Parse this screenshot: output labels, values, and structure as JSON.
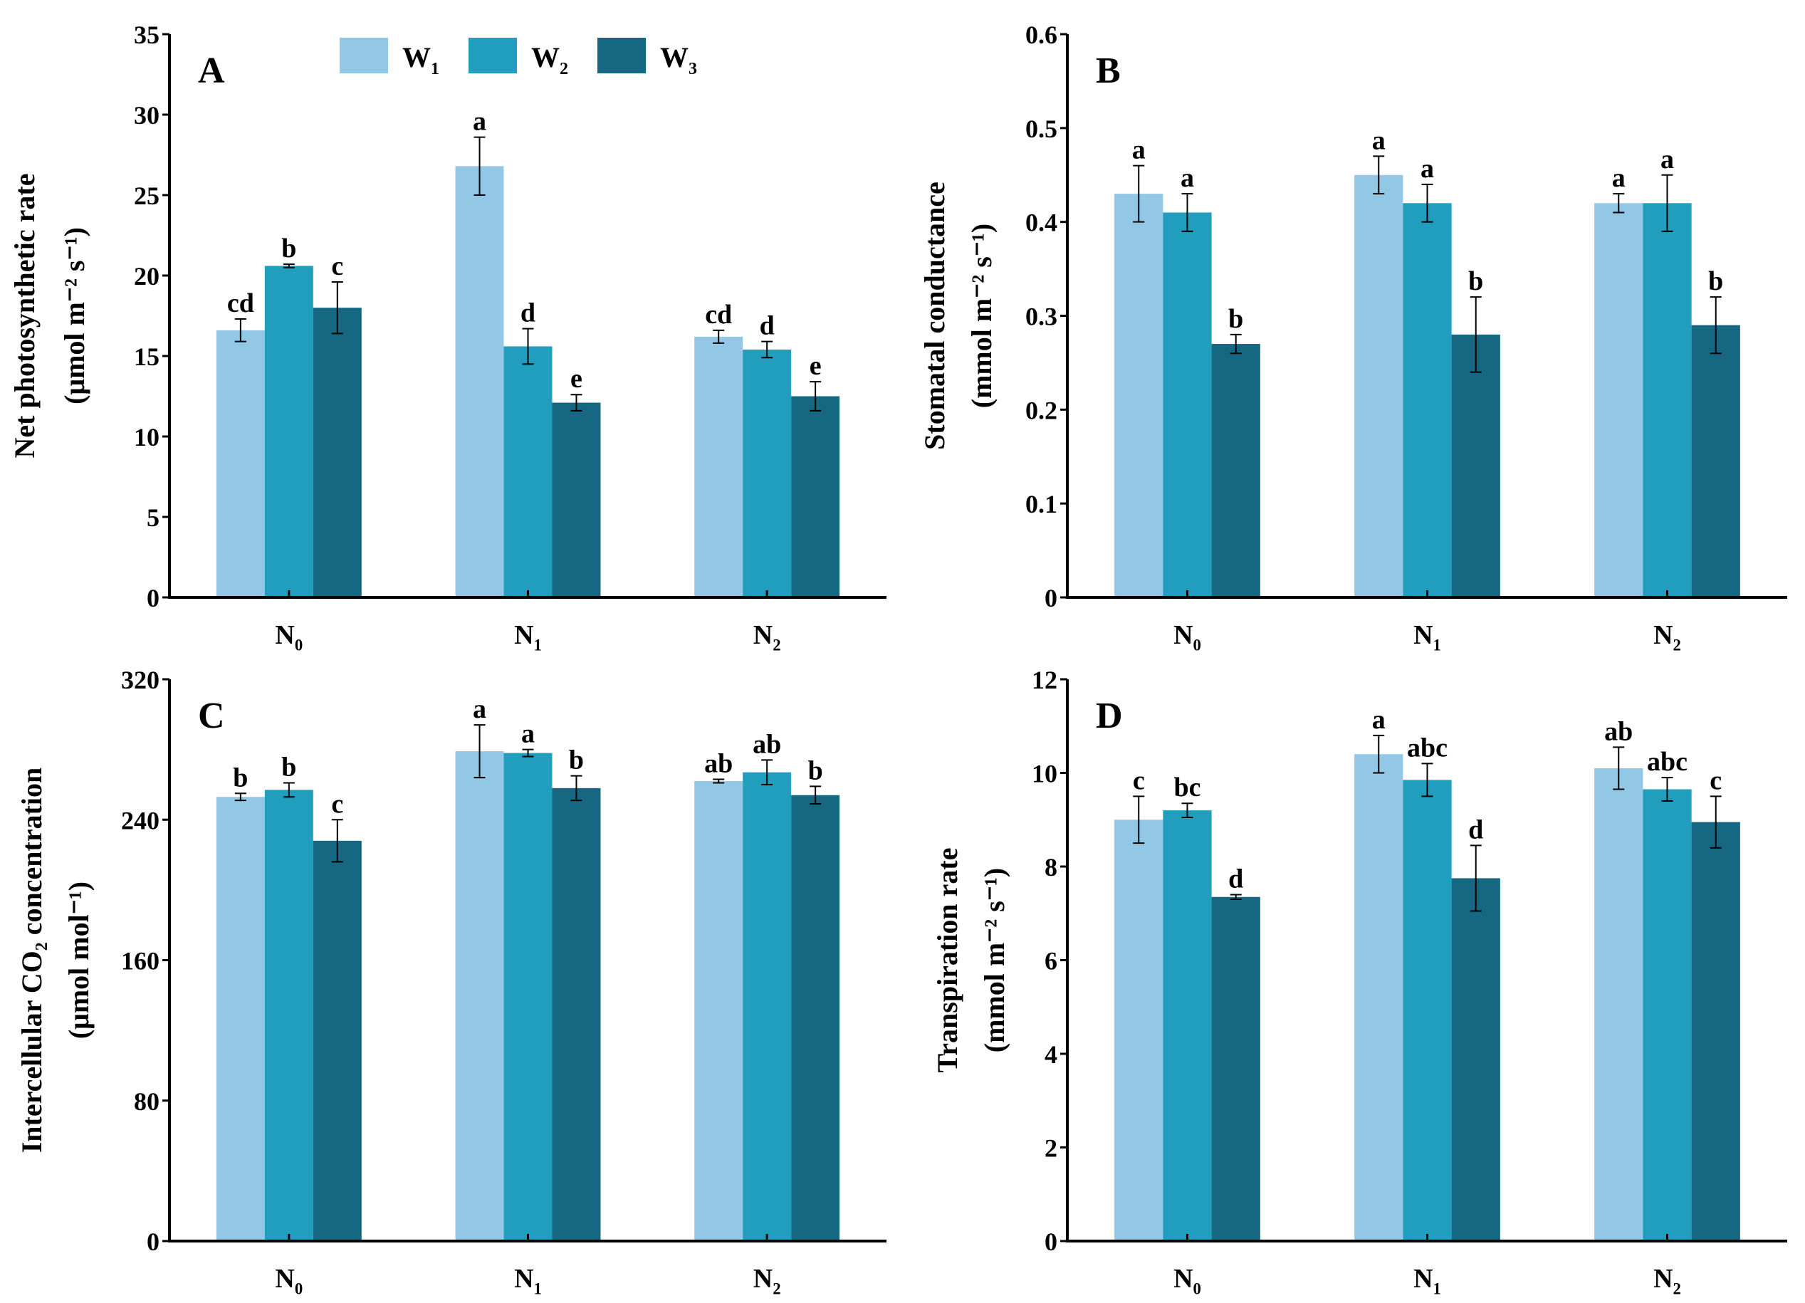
{
  "colors": {
    "W1": "#92c8e6",
    "W2": "#219dbd",
    "W3": "#156782",
    "axis": "#000000"
  },
  "legend": [
    {
      "base": "W",
      "sub": "1"
    },
    {
      "base": "W",
      "sub": "2"
    },
    {
      "base": "W",
      "sub": "3"
    }
  ],
  "chart_data": [
    {
      "type": "bar",
      "panel": "A",
      "ylabel": [
        "Net photosynthetic rate",
        "(μmol m⁻² s⁻¹)"
      ],
      "ylim": [
        0,
        35
      ],
      "yticks": [
        "0",
        "5",
        "10",
        "15",
        "20",
        "25",
        "30",
        "35"
      ],
      "categories": [
        {
          "base": "N",
          "sub": "0"
        },
        {
          "base": "N",
          "sub": "1"
        },
        {
          "base": "N",
          "sub": "2"
        }
      ],
      "series": [
        {
          "name": "W1",
          "values": [
            16.6,
            26.8,
            16.2
          ],
          "errors": [
            0.7,
            1.8,
            0.4
          ],
          "letters": [
            "cd",
            "a",
            "cd"
          ]
        },
        {
          "name": "W2",
          "values": [
            20.6,
            15.6,
            15.4
          ],
          "errors": [
            0.1,
            1.1,
            0.5
          ],
          "letters": [
            "b",
            "d",
            "d"
          ]
        },
        {
          "name": "W3",
          "values": [
            18.0,
            12.1,
            12.5
          ],
          "errors": [
            1.6,
            0.5,
            0.9
          ],
          "letters": [
            "c",
            "e",
            "e"
          ]
        }
      ]
    },
    {
      "type": "bar",
      "panel": "B",
      "ylabel": [
        "Stomatal conductance",
        "(mmol m⁻² s⁻¹)"
      ],
      "ylim": [
        0,
        0.6
      ],
      "yticks": [
        "0",
        "0.1",
        "0.2",
        "0.3",
        "0.4",
        "0.5",
        "0.6"
      ],
      "categories": [
        {
          "base": "N",
          "sub": "0"
        },
        {
          "base": "N",
          "sub": "1"
        },
        {
          "base": "N",
          "sub": "2"
        }
      ],
      "series": [
        {
          "name": "W1",
          "values": [
            0.43,
            0.45,
            0.42
          ],
          "errors": [
            0.03,
            0.02,
            0.01
          ],
          "letters": [
            "a",
            "a",
            "a"
          ]
        },
        {
          "name": "W2",
          "values": [
            0.41,
            0.42,
            0.42
          ],
          "errors": [
            0.02,
            0.02,
            0.03
          ],
          "letters": [
            "a",
            "a",
            "a"
          ]
        },
        {
          "name": "W3",
          "values": [
            0.27,
            0.28,
            0.29
          ],
          "errors": [
            0.01,
            0.04,
            0.03
          ],
          "letters": [
            "b",
            "b",
            "b"
          ]
        }
      ]
    },
    {
      "type": "bar",
      "panel": "C",
      "ylabel": [
        "Intercellular CO₂ concentration",
        "(μmol mol⁻¹)"
      ],
      "ylim": [
        0,
        320
      ],
      "yticks": [
        "0",
        "80",
        "160",
        "240",
        "320"
      ],
      "categories": [
        {
          "base": "N",
          "sub": "0"
        },
        {
          "base": "N",
          "sub": "1"
        },
        {
          "base": "N",
          "sub": "2"
        }
      ],
      "series": [
        {
          "name": "W1",
          "values": [
            253,
            279,
            262
          ],
          "errors": [
            2,
            15,
            1
          ],
          "letters": [
            "b",
            "a",
            "ab"
          ]
        },
        {
          "name": "W2",
          "values": [
            257,
            278,
            267
          ],
          "errors": [
            4,
            2,
            7
          ],
          "letters": [
            "b",
            "a",
            "ab"
          ]
        },
        {
          "name": "W3",
          "values": [
            228,
            258,
            254
          ],
          "errors": [
            12,
            7,
            5
          ],
          "letters": [
            "c",
            "b",
            "b"
          ]
        }
      ]
    },
    {
      "type": "bar",
      "panel": "D",
      "ylabel": [
        "Transpiration rate",
        "(mmol m⁻² s⁻¹)"
      ],
      "ylim": [
        0,
        12
      ],
      "yticks": [
        "0",
        "2",
        "4",
        "6",
        "8",
        "10",
        "12"
      ],
      "categories": [
        {
          "base": "N",
          "sub": "0"
        },
        {
          "base": "N",
          "sub": "1"
        },
        {
          "base": "N",
          "sub": "2"
        }
      ],
      "series": [
        {
          "name": "W1",
          "values": [
            9.0,
            10.4,
            10.1
          ],
          "errors": [
            0.5,
            0.4,
            0.45
          ],
          "letters": [
            "c",
            "a",
            "ab"
          ]
        },
        {
          "name": "W2",
          "values": [
            9.2,
            9.85,
            9.65
          ],
          "errors": [
            0.15,
            0.35,
            0.25
          ],
          "letters": [
            "bc",
            "abc",
            "abc"
          ]
        },
        {
          "name": "W3",
          "values": [
            7.35,
            7.75,
            8.95
          ],
          "errors": [
            0.05,
            0.7,
            0.55
          ],
          "letters": [
            "d",
            "d",
            "c"
          ]
        }
      ]
    }
  ]
}
